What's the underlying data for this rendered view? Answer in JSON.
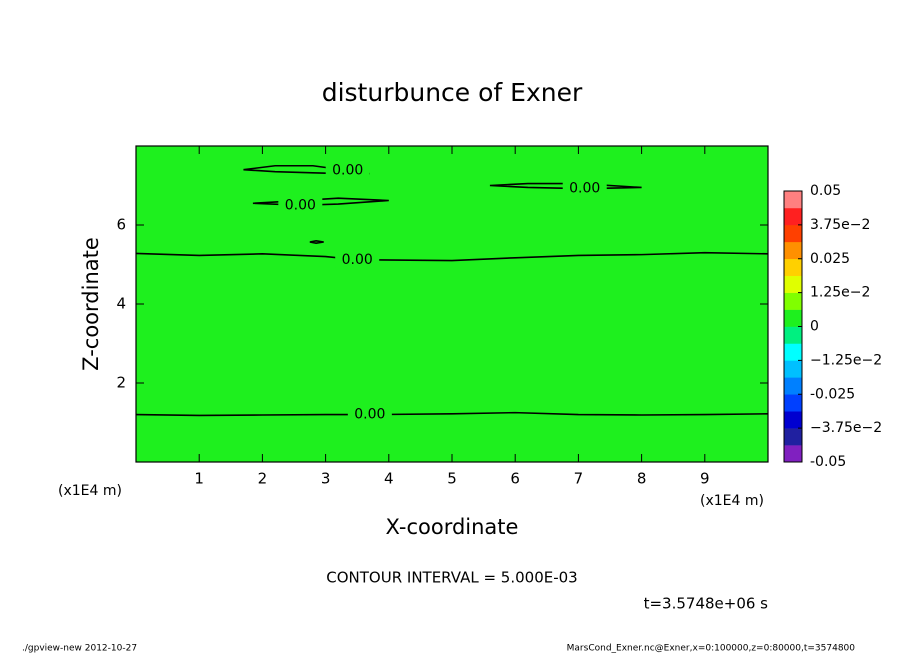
{
  "chart_data": {
    "type": "contour",
    "title": "disturbunce of Exner",
    "xlabel": "X-coordinate",
    "ylabel": "Z-coordinate",
    "unit": "(x1E4 m)",
    "xlim": [
      0,
      10
    ],
    "xticks": [
      1,
      2,
      3,
      4,
      5,
      6,
      7,
      8,
      9
    ],
    "ylim": [
      0,
      8
    ],
    "yticks": [
      2,
      4,
      6
    ],
    "fill_color": "#1ef01e",
    "line_color": "#000000",
    "contours": [
      {
        "label": "0.00",
        "x": [
          0,
          1,
          2,
          3,
          3.7,
          5,
          6,
          7,
          8,
          9,
          10
        ],
        "y": [
          1.2,
          1.18,
          1.19,
          1.2,
          1.2,
          1.22,
          1.25,
          1.2,
          1.19,
          1.2,
          1.22
        ]
      },
      {
        "label": "0.00",
        "x": [
          0,
          1,
          2,
          3,
          3.5,
          5,
          6,
          7,
          8,
          9,
          10
        ],
        "y": [
          5.28,
          5.23,
          5.27,
          5.2,
          5.12,
          5.1,
          5.17,
          5.23,
          5.25,
          5.3,
          5.27
        ]
      },
      {
        "label": "0.00",
        "x": [
          1.7,
          2.2,
          2.8,
          3.35,
          3.7,
          3.3,
          2.8,
          2.2,
          1.7
        ],
        "y": [
          7.4,
          7.5,
          7.5,
          7.38,
          7.3,
          7.3,
          7.32,
          7.35,
          7.4
        ]
      },
      {
        "label": "0.00",
        "x": [
          1.85,
          2.4,
          3.2,
          4.0,
          3.2,
          2.6,
          1.85
        ],
        "y": [
          6.55,
          6.6,
          6.68,
          6.62,
          6.53,
          6.5,
          6.55
        ]
      },
      {
        "label": "0.00",
        "x": [
          5.6,
          6.2,
          7.0,
          8.0,
          7.1,
          6.2,
          5.6
        ],
        "y": [
          7.0,
          7.05,
          7.05,
          6.95,
          6.92,
          6.95,
          7.0
        ]
      },
      {
        "x": [
          2.75,
          2.85,
          2.97,
          2.85,
          2.75
        ],
        "y": [
          5.57,
          5.6,
          5.57,
          5.54,
          5.57
        ]
      }
    ],
    "colorbar": {
      "lim": [
        -0.05,
        0.05
      ],
      "colors": [
        "#8020c0",
        "#2020a0",
        "#0000d0",
        "#0040ff",
        "#0080ff",
        "#00c0ff",
        "#00ffff",
        "#00f080",
        "#1ef01e",
        "#80ff00",
        "#e0ff00",
        "#ffd000",
        "#ff9000",
        "#ff4000",
        "#ff2020",
        "#ff8080"
      ],
      "ticks": [
        -0.05,
        {
          "value": -0.0375,
          "label": "−3.75e−2"
        },
        -0.025,
        {
          "value": -0.0125,
          "label": "−1.25e−2"
        },
        0,
        {
          "value": 0.0125,
          "label": "1.25e−2"
        },
        0.025,
        {
          "value": 0.0375,
          "label": "3.75e−2"
        },
        0.05
      ]
    },
    "interval_note": "CONTOUR INTERVAL = 5.000E-03",
    "time_note": "t=3.5748e+06 s"
  },
  "footer": {
    "left": "./gpview-new  2012-10-27",
    "right": "MarsCond_Exner.nc@Exner,x=0:100000,z=0:80000,t=3574800"
  }
}
